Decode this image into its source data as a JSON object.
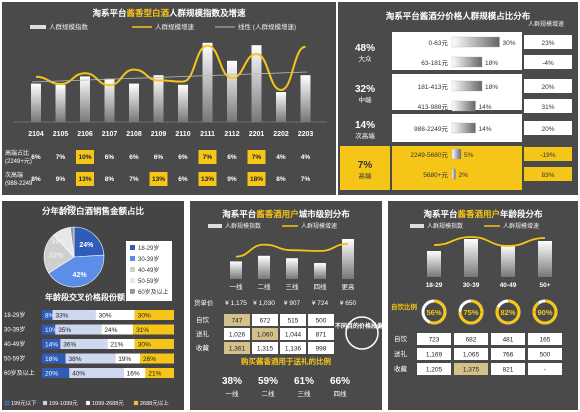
{
  "p1": {
    "title_pre": "淘系平台",
    "title_gold": "酱香型白酒",
    "title_post": "人群规模指数及增速",
    "legend": [
      "人群规模指数",
      "人群规模增速",
      "线性 (人群规模增速)"
    ],
    "chart_data": {
      "type": "bar",
      "categories": [
        "2104",
        "2105",
        "2106",
        "2107",
        "2108",
        "2109",
        "2110",
        "2111",
        "2112",
        "2201",
        "2202",
        "2203"
      ],
      "series": [
        {
          "name": "人群规模指数",
          "values": [
            3.2,
            3.1,
            3.8,
            3.6,
            3.2,
            3.9,
            3.1,
            6.6,
            5.1,
            6.4,
            2.5,
            3.9
          ]
        },
        {
          "name": "人群规模增速",
          "values": [
            3.6,
            3.0,
            3.9,
            2.9,
            4.2,
            3.3,
            3.2,
            6.2,
            3.5,
            5.5,
            2.5,
            6.1
          ]
        }
      ]
    },
    "rows": [
      {
        "label": "高端占比(2249+元)",
        "values": [
          "6%",
          "7%",
          "10%",
          "6%",
          "6%",
          "6%",
          "6%",
          "7%",
          "6%",
          "7%",
          "4%",
          "4%"
        ],
        "hi": [
          2,
          7,
          9
        ]
      },
      {
        "label": "次高端(988-2249",
        "values": [
          "8%",
          "9%",
          "13%",
          "8%",
          "7%",
          "13%",
          "6%",
          "13%",
          "9%",
          "18%",
          "8%",
          "7%"
        ],
        "hi": [
          2,
          5,
          7,
          9
        ]
      }
    ],
    "axis_rows": [
      "高端占比",
      "(2249+元)",
      "次高端",
      "(988-2249"
    ]
  },
  "p2": {
    "title": "淘系平台酱酒分价格人群规模占比分布",
    "col_head": "人群规模增速",
    "groups": [
      {
        "pct": "48%",
        "name": "大众",
        "rows": [
          {
            "range": "0-63元",
            "val": "30%",
            "w": 0.95,
            "g": "23%"
          },
          {
            "range": "63-181元",
            "val": "18%",
            "w": 0.6,
            "g": "-4%"
          }
        ]
      },
      {
        "pct": "32%",
        "name": "中端",
        "rows": [
          {
            "range": "181-413元",
            "val": "18%",
            "w": 0.6,
            "g": "20%"
          },
          {
            "range": "413-988元",
            "val": "14%",
            "w": 0.47,
            "g": "31%"
          }
        ]
      },
      {
        "pct": "14%",
        "name": "次高端",
        "rows": [
          {
            "range": "988-2249元",
            "val": "14%",
            "w": 0.47,
            "g": "20%"
          }
        ]
      },
      {
        "pct": "7%",
        "name": "高端",
        "rows": [
          {
            "range": "2249-5680元",
            "val": "5%",
            "w": 0.18,
            "g": "-19%"
          },
          {
            "range": "5680+元",
            "val": "2%",
            "w": 0.07,
            "g": "83%"
          }
        ]
      }
    ]
  },
  "p3": {
    "title": "分年龄段白酒销售金额占比",
    "chart_data": {
      "type": "pie",
      "labels": [
        "18-29岁",
        "30-39岁",
        "40-49岁",
        "50-59岁",
        "60岁及以上"
      ],
      "values": [
        24,
        42,
        22,
        10,
        2
      ]
    },
    "pie_labels": [
      "24%",
      "42%",
      "22%",
      "10%",
      "2%"
    ],
    "sub_title": "年龄段交叉价格段份额占比",
    "rows": [
      {
        "age": "18-29岁",
        "v": [
          8,
          33,
          30,
          30
        ]
      },
      {
        "age": "30-39岁",
        "v": [
          10,
          35,
          24,
          31
        ]
      },
      {
        "age": "40-49岁",
        "v": [
          14,
          36,
          21,
          30
        ]
      },
      {
        "age": "50-59岁",
        "v": [
          18,
          38,
          19,
          26
        ]
      },
      {
        "age": "60岁及以上",
        "v": [
          20,
          40,
          16,
          21
        ]
      }
    ],
    "cells": [
      [
        "8%",
        "33%",
        "30%",
        "30%"
      ],
      [
        "10%",
        "35%",
        "24%",
        "31%"
      ],
      [
        "14%",
        "36%",
        "21%",
        "30%"
      ],
      [
        "18%",
        "38%",
        "19%",
        "26%"
      ],
      [
        "20%",
        "40%",
        "16%",
        "21%"
      ]
    ],
    "legend": [
      "199元以下",
      "199-1099元",
      "1099-2688元",
      "2688元以上"
    ]
  },
  "p4": {
    "title_pre": "淘系平台",
    "title_gold": "酱香酒用户",
    "title_post": "城市级别分布",
    "legend": [
      "人群规模指数",
      "人群规模增速"
    ],
    "chart_data": {
      "type": "bar",
      "categories": [
        "一线",
        "二线",
        "三线",
        "四线",
        "更高"
      ],
      "series": [
        {
          "name": "人群规模指数",
          "values": [
            2.2,
            2.9,
            2.6,
            2.0,
            5.0
          ]
        },
        {
          "name": "人群规模增速",
          "values": [
            2.8,
            4.3,
            3.6,
            3.5,
            4.4
          ]
        }
      ]
    },
    "price_label": "货单价",
    "prices": [
      "¥ 1,175",
      "¥ 1,030",
      "¥ 907",
      "¥ 724",
      "¥ 650"
    ],
    "table": [
      {
        "label": "自饮",
        "v": [
          "747",
          "672",
          "515",
          "500"
        ]
      },
      {
        "label": "送礼",
        "v": [
          "1,026",
          "1,060",
          "1,044",
          "871"
        ]
      },
      {
        "label": "收藏",
        "v": [
          "1,361",
          "1,315",
          "1,136",
          "998"
        ]
      }
    ],
    "side_note": "不同目的价格段偏好",
    "bottom_title": "购买酱香酒用于送礼的比例",
    "bottom": [
      {
        "pct": "38%",
        "lab": "一线"
      },
      {
        "pct": "59%",
        "lab": "二线"
      },
      {
        "pct": "61%",
        "lab": "三线"
      },
      {
        "pct": "66%",
        "lab": "四线"
      }
    ]
  },
  "p5": {
    "title_pre": "淘系平台",
    "title_gold": "酱香酒用户",
    "title_post": "年龄段分布",
    "legend": [
      "人群规模指数",
      "人群规模增速"
    ],
    "chart_data": {
      "type": "bar",
      "categories": [
        "18-29",
        "30-39",
        "40-49",
        "50+"
      ],
      "series": [
        {
          "name": "人群规模指数",
          "values": [
            2.6,
            3.8,
            3.2,
            3.6
          ]
        },
        {
          "name": "人群规模增速",
          "values": [
            3.2,
            4.0,
            3.1,
            3.9
          ]
        }
      ]
    },
    "ratio_label": "自饮比例",
    "ratios": [
      "56%",
      "75%",
      "82%",
      "90%"
    ],
    "ratio_vals": [
      56,
      75,
      82,
      90
    ],
    "table": [
      {
        "label": "自饮",
        "v": [
          "723",
          "682",
          "481",
          "165"
        ]
      },
      {
        "label": "送礼",
        "v": [
          "1,169",
          "1,065",
          "766",
          "500"
        ]
      },
      {
        "label": "收藏",
        "v": [
          "1,205",
          "1,375",
          "821",
          "-"
        ]
      }
    ]
  }
}
